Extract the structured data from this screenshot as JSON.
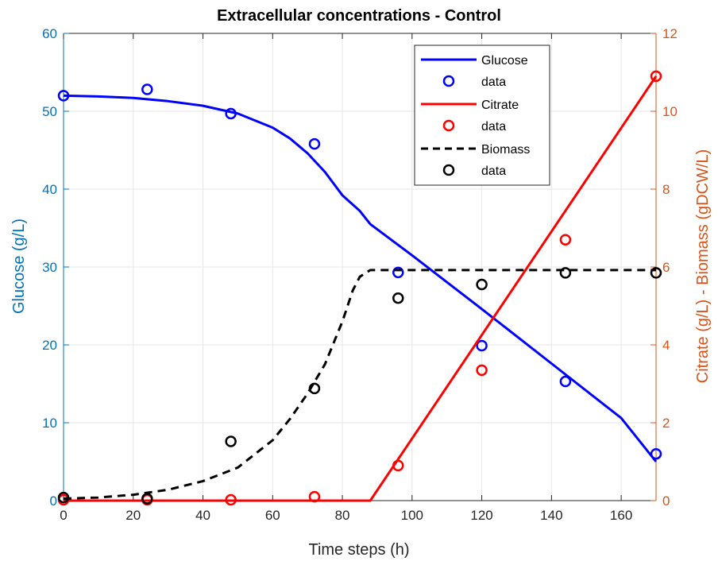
{
  "chart_data": {
    "type": "line",
    "title": "Extracellular concentrations - Control",
    "xlabel": "Time steps (h)",
    "ylabel_left": "Glucose (g/L)",
    "ylabel_right": "Citrate (g/L) - Biomass (gDCW/L)",
    "xlim": [
      0,
      170
    ],
    "ylim_left": [
      0,
      60
    ],
    "ylim_right": [
      0,
      12
    ],
    "x_ticks": [
      0,
      20,
      40,
      60,
      80,
      100,
      120,
      140,
      160
    ],
    "y_left_ticks": [
      0,
      10,
      20,
      30,
      40,
      50,
      60
    ],
    "y_right_ticks": [
      0,
      2,
      4,
      6,
      8,
      10,
      12
    ],
    "grid": true,
    "legend_position": "top-right",
    "colors": {
      "glucose": "#0000ff",
      "citrate": "#ff0000",
      "biomass": "#000000",
      "left_axis": "#0072bd",
      "right_axis": "#d95319",
      "grid": "#e6e6e6"
    },
    "series": [
      {
        "name": "Glucose",
        "kind": "line",
        "axis": "left",
        "style": "solid",
        "color": "#0000ff",
        "x": [
          0,
          10,
          20,
          30,
          40,
          50,
          60,
          65,
          70,
          75,
          80,
          85,
          88,
          100,
          120,
          140,
          160,
          170
        ],
        "y": [
          52.0,
          51.9,
          51.7,
          51.3,
          50.7,
          49.7,
          47.9,
          46.5,
          44.6,
          42.2,
          39.2,
          37.2,
          35.5,
          31.5,
          24.6,
          17.6,
          10.6,
          5.0
        ]
      },
      {
        "name": "data",
        "kind": "markers",
        "axis": "left",
        "color": "#0000ff",
        "x": [
          0,
          24,
          48,
          72,
          96,
          120,
          144,
          170
        ],
        "y": [
          52.0,
          52.8,
          49.7,
          45.8,
          29.3,
          19.9,
          15.3,
          6.0
        ]
      },
      {
        "name": "Citrate",
        "kind": "line",
        "axis": "right",
        "style": "solid",
        "color": "#ff0000",
        "x": [
          0,
          88,
          170
        ],
        "y": [
          0,
          0,
          10.9
        ]
      },
      {
        "name": "data",
        "kind": "markers",
        "axis": "right",
        "color": "#ff0000",
        "x": [
          0,
          24,
          48,
          72,
          96,
          120,
          144,
          170
        ],
        "y": [
          0.02,
          0.02,
          0.02,
          0.1,
          0.9,
          3.35,
          6.7,
          10.9
        ]
      },
      {
        "name": "Biomass",
        "kind": "line",
        "axis": "right",
        "style": "dashed",
        "color": "#000000",
        "x": [
          0,
          10,
          20,
          30,
          40,
          50,
          60,
          65,
          70,
          75,
          80,
          83,
          85,
          88,
          100,
          120,
          140,
          160,
          170
        ],
        "y": [
          0.05,
          0.08,
          0.15,
          0.28,
          0.5,
          0.85,
          1.55,
          2.1,
          2.75,
          3.5,
          4.6,
          5.4,
          5.75,
          5.92,
          5.92,
          5.92,
          5.92,
          5.92,
          5.92
        ]
      },
      {
        "name": "data",
        "kind": "markers",
        "axis": "right",
        "color": "#000000",
        "x": [
          0,
          24,
          48,
          72,
          96,
          120,
          144,
          170
        ],
        "y": [
          0.08,
          0.05,
          1.52,
          2.88,
          5.2,
          5.55,
          5.85,
          5.85
        ]
      }
    ]
  }
}
